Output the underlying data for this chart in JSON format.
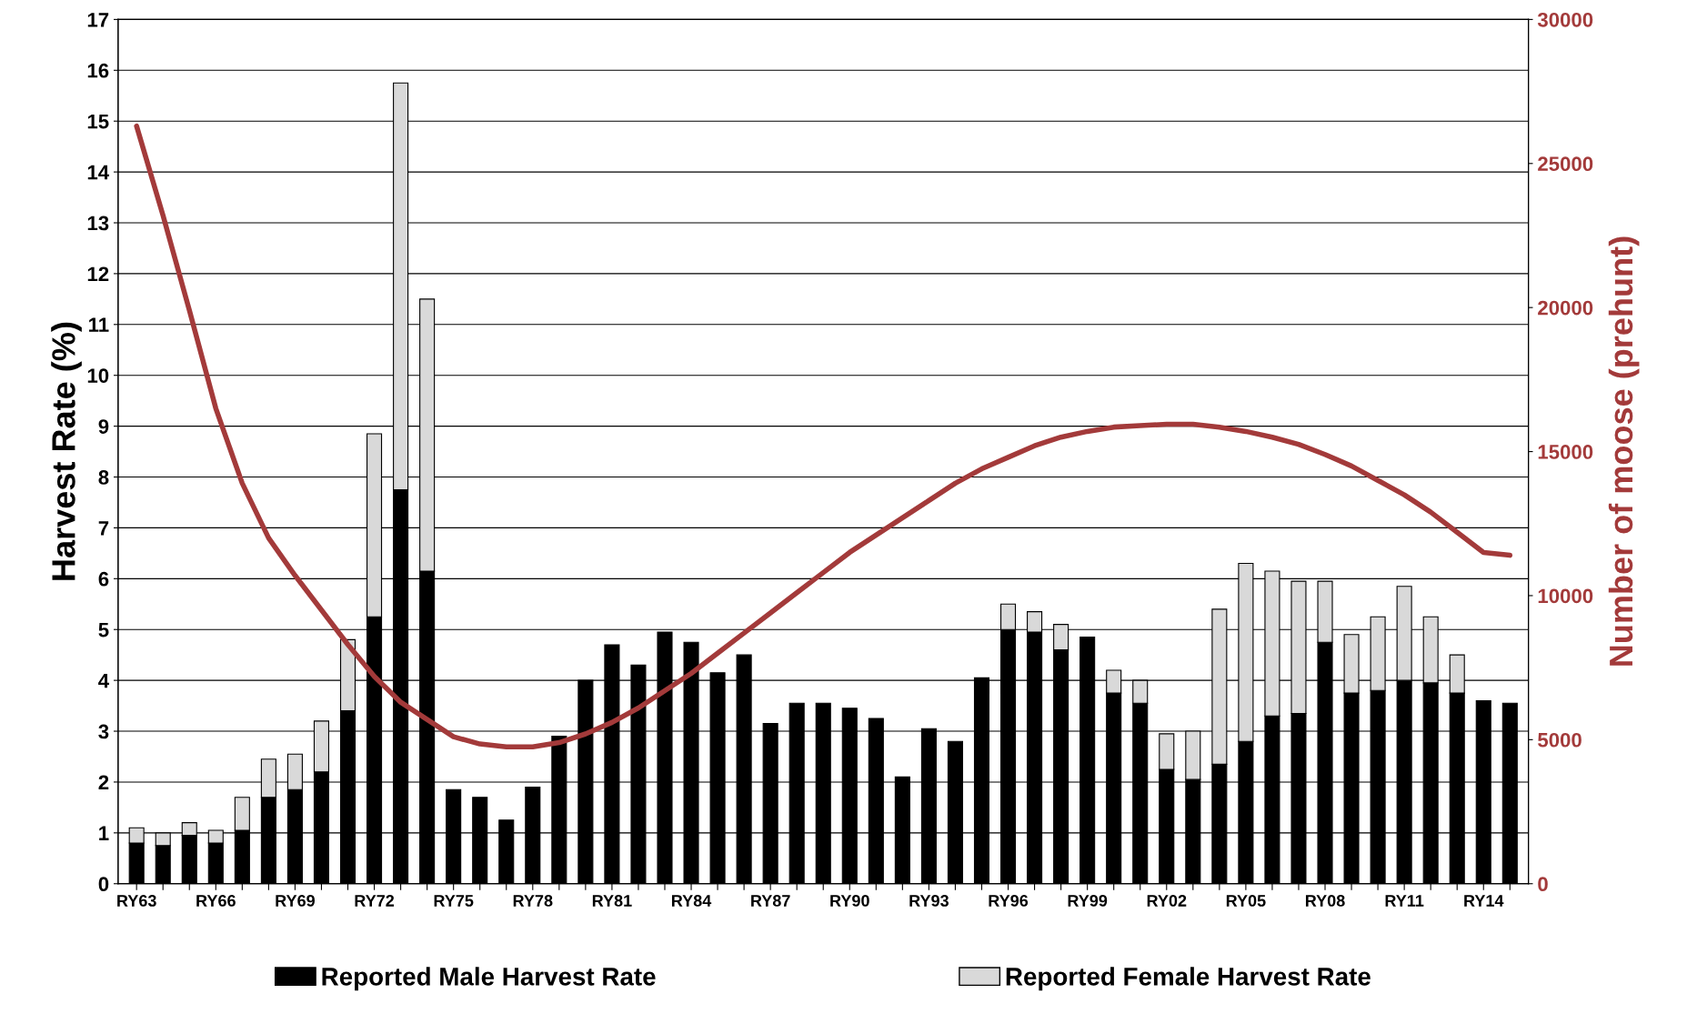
{
  "chart_data": {
    "type": "bar",
    "stacked": true,
    "ylabel": "Harvest Rate (%)",
    "y2label": "Number of moose (prehunt)",
    "categories": [
      "RY63",
      null,
      null,
      "RY66",
      null,
      null,
      "RY69",
      null,
      null,
      "RY72",
      null,
      null,
      "RY75",
      null,
      null,
      "RY78",
      null,
      null,
      "RY81",
      null,
      null,
      "RY84",
      null,
      null,
      "RY87",
      null,
      null,
      "RY90",
      null,
      null,
      "RY93",
      null,
      null,
      "RY96",
      null,
      null,
      "RY99",
      null,
      null,
      "RY02",
      null,
      null,
      "RY05",
      null,
      null,
      "RY08",
      null,
      null,
      "RY11",
      null,
      null,
      "RY14",
      null
    ],
    "series": [
      {
        "name": "Reported Male Harvest Rate",
        "color": "#000000",
        "values": [
          0.8,
          0.75,
          0.95,
          0.8,
          1.05,
          1.7,
          1.85,
          2.2,
          3.4,
          5.25,
          7.75,
          6.15,
          1.85,
          1.7,
          1.25,
          1.9,
          2.9,
          4.0,
          4.7,
          4.3,
          4.95,
          4.75,
          4.15,
          4.5,
          3.15,
          3.55,
          3.55,
          3.45,
          3.25,
          2.1,
          3.05,
          2.8,
          4.05,
          5.0,
          4.95,
          4.6,
          4.85,
          3.75,
          3.55,
          2.25,
          2.05,
          2.35,
          2.8,
          3.3,
          3.35,
          4.75,
          3.75,
          3.8,
          4.0,
          3.95,
          3.75,
          3.6,
          3.55
        ]
      },
      {
        "name": "Reported Female Harvest Rate",
        "color": "#d9d9d9",
        "values": [
          0.3,
          0.25,
          0.25,
          0.25,
          0.65,
          0.75,
          0.7,
          1.0,
          1.4,
          3.6,
          8.0,
          5.35,
          null,
          null,
          null,
          null,
          null,
          null,
          null,
          null,
          null,
          null,
          null,
          null,
          null,
          null,
          null,
          null,
          null,
          null,
          null,
          null,
          null,
          0.5,
          0.4,
          0.5,
          null,
          0.45,
          0.45,
          0.7,
          0.95,
          3.05,
          3.5,
          2.85,
          2.6,
          1.2,
          1.15,
          1.45,
          1.85,
          1.3,
          0.75,
          null,
          null
        ]
      },
      {
        "type": "line",
        "axis": "y2",
        "color": "#a33a3a",
        "values": [
          26300,
          23200,
          19900,
          16500,
          13900,
          12000,
          10700,
          9500,
          8300,
          7200,
          6300,
          5700,
          5100,
          4850,
          4750,
          4750,
          4900,
          5200,
          5600,
          6100,
          6700,
          7300,
          8000,
          8700,
          9400,
          10100,
          10800,
          11500,
          12100,
          12700,
          13300,
          13900,
          14400,
          14800,
          15200,
          15500,
          15700,
          15850,
          15900,
          15950,
          15950,
          15850,
          15700,
          15500,
          15250,
          14900,
          14500,
          14000,
          13500,
          12900,
          12200,
          11500,
          11400
        ]
      }
    ],
    "ylim": [
      0,
      17
    ],
    "yticks": [
      0,
      1,
      2,
      3,
      4,
      5,
      6,
      7,
      8,
      9,
      10,
      11,
      12,
      13,
      14,
      15,
      16,
      17
    ],
    "y2lim": [
      0,
      30000
    ],
    "y2ticks": [
      0,
      5000,
      10000,
      15000,
      20000,
      25000,
      30000
    ],
    "grid": "y",
    "legend": "bottom"
  }
}
